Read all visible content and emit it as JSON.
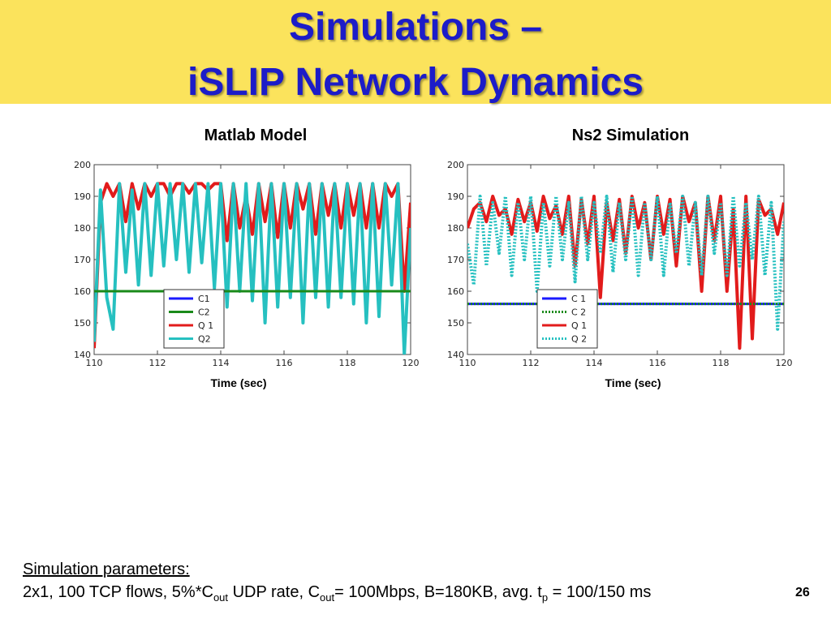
{
  "slide": {
    "title_line1": "Simulations –",
    "title_line2": "iSLIP Network Dynamics",
    "page_number": "26",
    "params_heading": "Simulation parameters:",
    "params_parts": {
      "p1": "2x1, 100 TCP flows, 5%*C",
      "s1": "out",
      "p2": " UDP rate, C",
      "s2": "out",
      "p3": "= 100Mbps, B=180KB, avg. t",
      "s3": "p",
      "p4": " = 100/150 ms"
    }
  },
  "colors": {
    "title_band": "#fbe35c",
    "title_text": "#1c1cc8",
    "C1": "#1a1aff",
    "C2": "#1a8a1a",
    "Q1": "#e21b1b",
    "Q2": "#26c0c0"
  },
  "chart_data": [
    {
      "type": "line",
      "title": "Matlab Model",
      "xlabel": "Time (sec)",
      "ylabel": "",
      "xlim": [
        110,
        120
      ],
      "ylim": [
        140,
        200
      ],
      "xticks": [
        110,
        112,
        114,
        116,
        118,
        120
      ],
      "yticks": [
        140,
        150,
        160,
        170,
        180,
        190,
        200
      ],
      "grid": false,
      "legend": "bottom-left",
      "series": [
        {
          "name": "C1",
          "style": "solid",
          "x": [
            110,
            120
          ],
          "y": [
            160,
            160
          ]
        },
        {
          "name": "C2",
          "style": "solid",
          "x": [
            110,
            120
          ],
          "y": [
            160,
            160
          ]
        },
        {
          "name": "Q 1",
          "style": "solid",
          "x": [
            110.0,
            110.2,
            110.4,
            110.6,
            110.8,
            111.0,
            111.2,
            111.4,
            111.6,
            111.8,
            112.0,
            112.2,
            112.4,
            112.6,
            112.8,
            113.0,
            113.2,
            113.4,
            113.6,
            113.8,
            114.0,
            114.2,
            114.4,
            114.6,
            114.8,
            115.0,
            115.2,
            115.4,
            115.6,
            115.8,
            116.0,
            116.2,
            116.4,
            116.6,
            116.8,
            117.0,
            117.2,
            117.4,
            117.6,
            117.8,
            118.0,
            118.2,
            118.4,
            118.6,
            118.8,
            119.0,
            119.2,
            119.4,
            119.6,
            119.8,
            120.0
          ],
          "y": [
            142,
            188,
            194,
            190,
            194,
            182,
            194,
            186,
            194,
            190,
            194,
            194,
            190,
            194,
            194,
            191,
            194,
            194,
            192,
            194,
            194,
            176,
            194,
            180,
            190,
            178,
            194,
            182,
            194,
            177,
            194,
            180,
            194,
            186,
            194,
            178,
            194,
            184,
            194,
            180,
            194,
            184,
            194,
            180,
            194,
            180,
            194,
            190,
            194,
            160,
            188
          ]
        },
        {
          "name": "Q2",
          "style": "solid",
          "x": [
            110.0,
            110.2,
            110.4,
            110.6,
            110.8,
            111.0,
            111.2,
            111.4,
            111.6,
            111.8,
            112.0,
            112.2,
            112.4,
            112.6,
            112.8,
            113.0,
            113.2,
            113.4,
            113.6,
            113.8,
            114.0,
            114.2,
            114.4,
            114.6,
            114.8,
            115.0,
            115.2,
            115.4,
            115.6,
            115.8,
            116.0,
            116.2,
            116.4,
            116.6,
            116.8,
            117.0,
            117.2,
            117.4,
            117.6,
            117.8,
            118.0,
            118.2,
            118.4,
            118.6,
            118.8,
            119.0,
            119.2,
            119.4,
            119.6,
            119.8,
            120.0
          ],
          "y": [
            144,
            192,
            158,
            148,
            194,
            166,
            192,
            162,
            194,
            165,
            194,
            168,
            194,
            170,
            194,
            166,
            194,
            169,
            194,
            161,
            194,
            155,
            194,
            160,
            194,
            157,
            194,
            150,
            194,
            155,
            194,
            158,
            194,
            150,
            194,
            158,
            194,
            155,
            194,
            158,
            194,
            156,
            194,
            150,
            194,
            152,
            194,
            162,
            194,
            140,
            180
          ]
        }
      ]
    },
    {
      "type": "line",
      "title": "Ns2 Simulation",
      "xlabel": "Time (sec)",
      "ylabel": "",
      "xlim": [
        110,
        120
      ],
      "ylim": [
        140,
        200
      ],
      "xticks": [
        110,
        112,
        114,
        116,
        118,
        120
      ],
      "yticks": [
        140,
        150,
        160,
        170,
        180,
        190,
        200
      ],
      "grid": false,
      "legend": "bottom-left",
      "series": [
        {
          "name": "C 1",
          "style": "solid",
          "x": [
            110,
            120
          ],
          "y": [
            156,
            156
          ]
        },
        {
          "name": "C 2",
          "style": "dotted",
          "x": [
            110,
            120
          ],
          "y": [
            156,
            156
          ]
        },
        {
          "name": "Q 1",
          "style": "solid",
          "x": [
            110.0,
            110.2,
            110.4,
            110.6,
            110.8,
            111.0,
            111.2,
            111.4,
            111.6,
            111.8,
            112.0,
            112.2,
            112.4,
            112.6,
            112.8,
            113.0,
            113.2,
            113.4,
            113.6,
            113.8,
            114.0,
            114.2,
            114.4,
            114.6,
            114.8,
            115.0,
            115.2,
            115.4,
            115.6,
            115.8,
            116.0,
            116.2,
            116.4,
            116.6,
            116.8,
            117.0,
            117.2,
            117.4,
            117.6,
            117.8,
            118.0,
            118.2,
            118.4,
            118.6,
            118.8,
            119.0,
            119.2,
            119.4,
            119.6,
            119.8,
            120.0
          ],
          "y": [
            180,
            186,
            188,
            182,
            190,
            184,
            186,
            178,
            189,
            182,
            188,
            179,
            190,
            183,
            187,
            178,
            190,
            168,
            189,
            175,
            190,
            158,
            188,
            176,
            189,
            172,
            190,
            180,
            188,
            170,
            190,
            178,
            189,
            168,
            190,
            182,
            188,
            160,
            190,
            176,
            190,
            160,
            186,
            142,
            190,
            145,
            189,
            184,
            186,
            178,
            188
          ]
        },
        {
          "name": "Q 2",
          "style": "dotted",
          "x": [
            110.0,
            110.2,
            110.4,
            110.6,
            110.8,
            111.0,
            111.2,
            111.4,
            111.6,
            111.8,
            112.0,
            112.2,
            112.4,
            112.6,
            112.8,
            113.0,
            113.2,
            113.4,
            113.6,
            113.8,
            114.0,
            114.2,
            114.4,
            114.6,
            114.8,
            115.0,
            115.2,
            115.4,
            115.6,
            115.8,
            116.0,
            116.2,
            116.4,
            116.6,
            116.8,
            117.0,
            117.2,
            117.4,
            117.6,
            117.8,
            118.0,
            118.2,
            118.4,
            118.6,
            118.8,
            119.0,
            119.2,
            119.4,
            119.6,
            119.8,
            120.0
          ],
          "y": [
            175,
            162,
            190,
            168,
            188,
            172,
            190,
            165,
            188,
            170,
            190,
            160,
            188,
            168,
            190,
            170,
            188,
            163,
            190,
            170,
            188,
            172,
            190,
            166,
            188,
            170,
            190,
            165,
            188,
            170,
            190,
            165,
            188,
            172,
            190,
            168,
            188,
            165,
            190,
            172,
            188,
            165,
            190,
            168,
            188,
            170,
            190,
            165,
            188,
            148,
            182
          ]
        }
      ]
    }
  ]
}
